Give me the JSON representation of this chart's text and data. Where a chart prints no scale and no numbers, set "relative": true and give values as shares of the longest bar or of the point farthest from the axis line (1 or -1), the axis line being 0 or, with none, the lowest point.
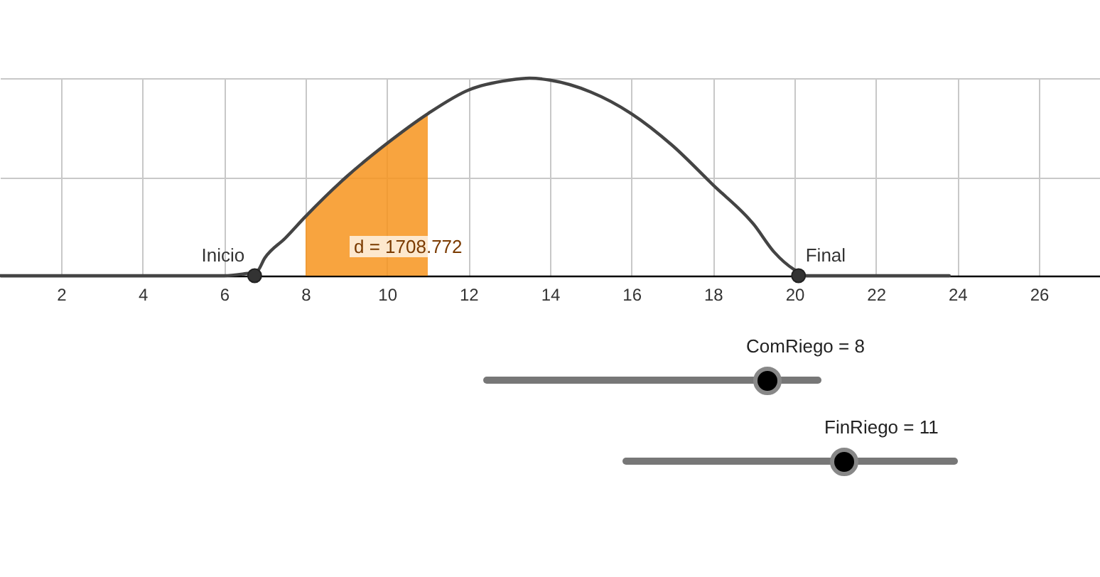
{
  "chart_data": {
    "type": "line",
    "relative": true,
    "xlim": [
      0.5,
      27.5
    ],
    "xticks": [
      2,
      4,
      6,
      8,
      10,
      12,
      14,
      16,
      18,
      20,
      22,
      24,
      26
    ],
    "grid": true,
    "series": [
      {
        "color": "#444444",
        "x": [
          0.5,
          3,
          6,
          6.5,
          6.8,
          7,
          7.5,
          8,
          9,
          10,
          11,
          12,
          13,
          13.5,
          14,
          15,
          16,
          17,
          18,
          19,
          19.5,
          20,
          20.3,
          21,
          23.8
        ],
        "values": [
          0,
          0,
          0,
          0.01,
          0.02,
          0.09,
          0.19,
          0.3,
          0.5,
          0.67,
          0.82,
          0.94,
          0.99,
          1,
          0.99,
          0.93,
          0.82,
          0.66,
          0.46,
          0.26,
          0.12,
          0.03,
          0,
          0,
          0
        ]
      },
      {
        "type": "area",
        "color": "#f7941d",
        "x": [
          8,
          9,
          10,
          11
        ],
        "values": [
          0.3,
          0.5,
          0.67,
          0.82
        ]
      },
      {
        "type": "scatter",
        "name": "Inicio",
        "color": "#333333",
        "x": [
          6.75
        ],
        "values": [
          0
        ]
      },
      {
        "type": "scatter",
        "name": "Final",
        "color": "#333333",
        "x": [
          20.1
        ],
        "values": [
          0
        ]
      }
    ],
    "annotations": [
      "d = 1708.772",
      "ComRiego = 8",
      "FinRiego = 11"
    ]
  }
}
